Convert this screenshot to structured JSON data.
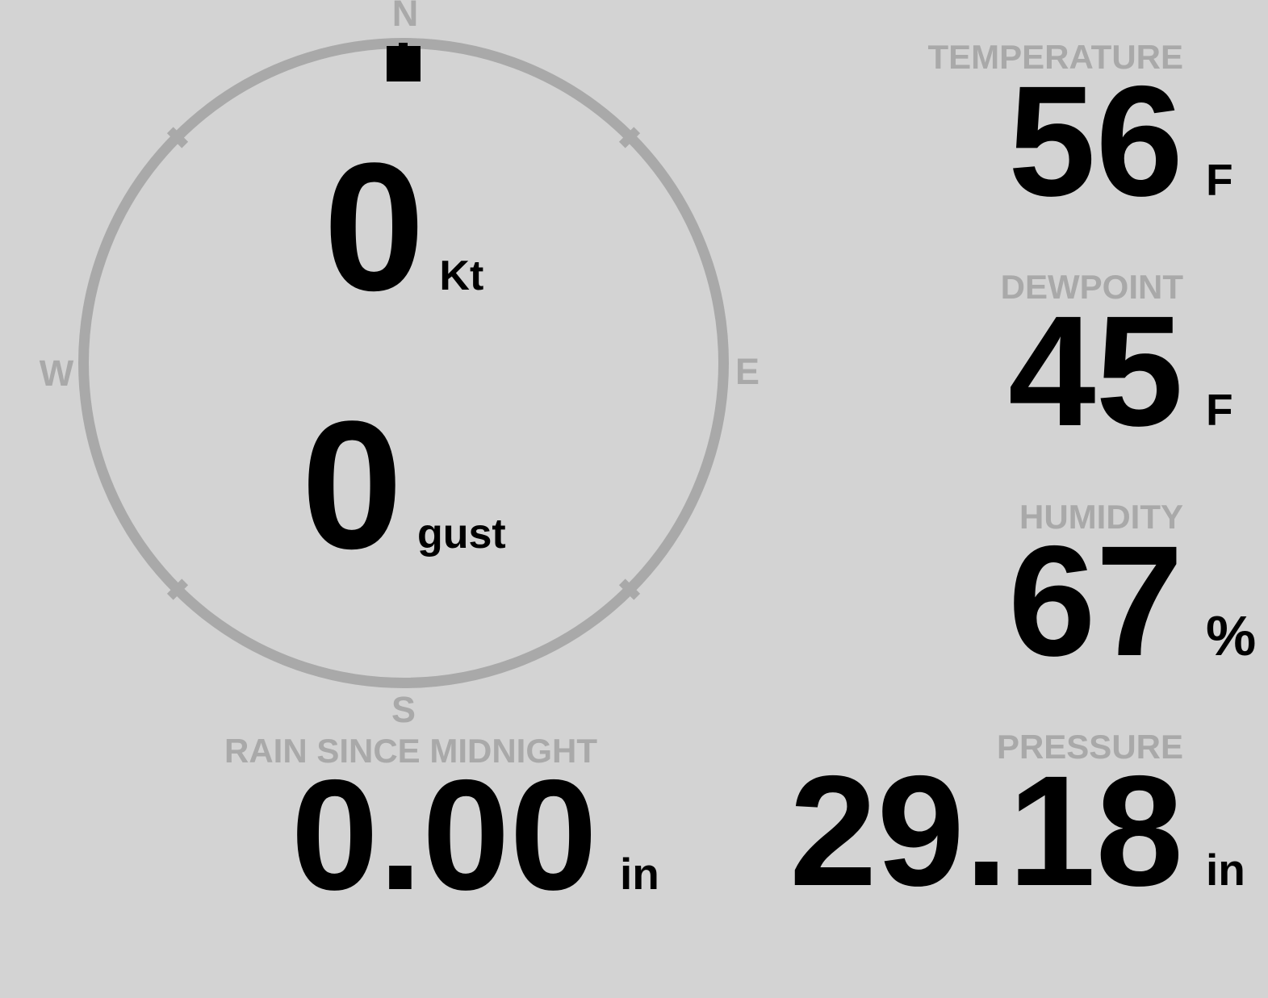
{
  "theme": {
    "background_color": "#d3d3d3",
    "muted_color": "#a9a9a9",
    "text_color": "#000000"
  },
  "compass": {
    "cardinals": {
      "north": "N",
      "east": "E",
      "south": "S",
      "west": "W"
    },
    "pointer_direction": "N",
    "wind": {
      "speed": "0",
      "speed_unit": "Kt",
      "gust": "0",
      "gust_unit": "gust"
    }
  },
  "metrics": {
    "temperature": {
      "label": "TEMPERATURE",
      "value": "56",
      "unit": "F"
    },
    "dewpoint": {
      "label": "DEWPOINT",
      "value": "45",
      "unit": "F"
    },
    "humidity": {
      "label": "HUMIDITY",
      "value": "67",
      "unit": "%"
    },
    "pressure": {
      "label": "PRESSURE",
      "value": "29.18",
      "unit": "in"
    },
    "rain_since_midnight": {
      "label": "RAIN SINCE MIDNIGHT",
      "value": "0.00",
      "unit": "in"
    }
  }
}
